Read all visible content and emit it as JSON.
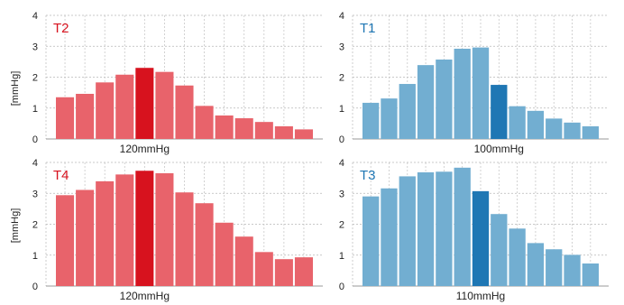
{
  "figure": {
    "ylabel": "[mmHg]"
  },
  "chart_data": [
    {
      "type": "bar",
      "title": "T2",
      "xlabel": "120mmHg",
      "ylabel": "[mmHg]",
      "ylim": [
        0,
        4
      ],
      "yticks": [
        0,
        1,
        2,
        3,
        4
      ],
      "grid": true,
      "color": "#e8636b",
      "highlight_color": "#d7121e",
      "title_color": "#d7121e",
      "highlight_index": 4,
      "values": [
        1.35,
        1.46,
        1.83,
        2.08,
        2.3,
        2.17,
        1.73,
        1.07,
        0.76,
        0.67,
        0.55,
        0.41,
        0.31
      ]
    },
    {
      "type": "bar",
      "title": "T1",
      "xlabel": "100mmHg",
      "ylabel": "",
      "ylim": [
        0,
        4
      ],
      "yticks": [
        0,
        1,
        2,
        3,
        4
      ],
      "grid": true,
      "color": "#72aed1",
      "highlight_color": "#1f77b4",
      "title_color": "#1f77b4",
      "highlight_index": 7,
      "values": [
        1.17,
        1.31,
        1.78,
        2.39,
        2.57,
        2.92,
        2.96,
        1.75,
        1.06,
        0.91,
        0.66,
        0.53,
        0.41
      ]
    },
    {
      "type": "bar",
      "title": "T4",
      "xlabel": "120mmHg",
      "ylabel": "[mmHg]",
      "ylim": [
        0,
        4
      ],
      "yticks": [
        0,
        1,
        2,
        3,
        4
      ],
      "grid": true,
      "color": "#e8636b",
      "highlight_color": "#d7121e",
      "title_color": "#d7121e",
      "highlight_index": 4,
      "values": [
        2.94,
        3.11,
        3.39,
        3.61,
        3.73,
        3.65,
        3.03,
        2.68,
        2.05,
        1.6,
        1.1,
        0.87,
        0.93
      ]
    },
    {
      "type": "bar",
      "title": "T3",
      "xlabel": "110mmHg",
      "ylabel": "",
      "ylim": [
        0,
        4
      ],
      "yticks": [
        0,
        1,
        2,
        3,
        4
      ],
      "grid": true,
      "color": "#72aed1",
      "highlight_color": "#1f77b4",
      "title_color": "#1f77b4",
      "highlight_index": 6,
      "values": [
        2.9,
        3.16,
        3.55,
        3.68,
        3.7,
        3.83,
        3.07,
        2.33,
        1.86,
        1.39,
        1.19,
        1.01,
        0.73
      ]
    }
  ]
}
